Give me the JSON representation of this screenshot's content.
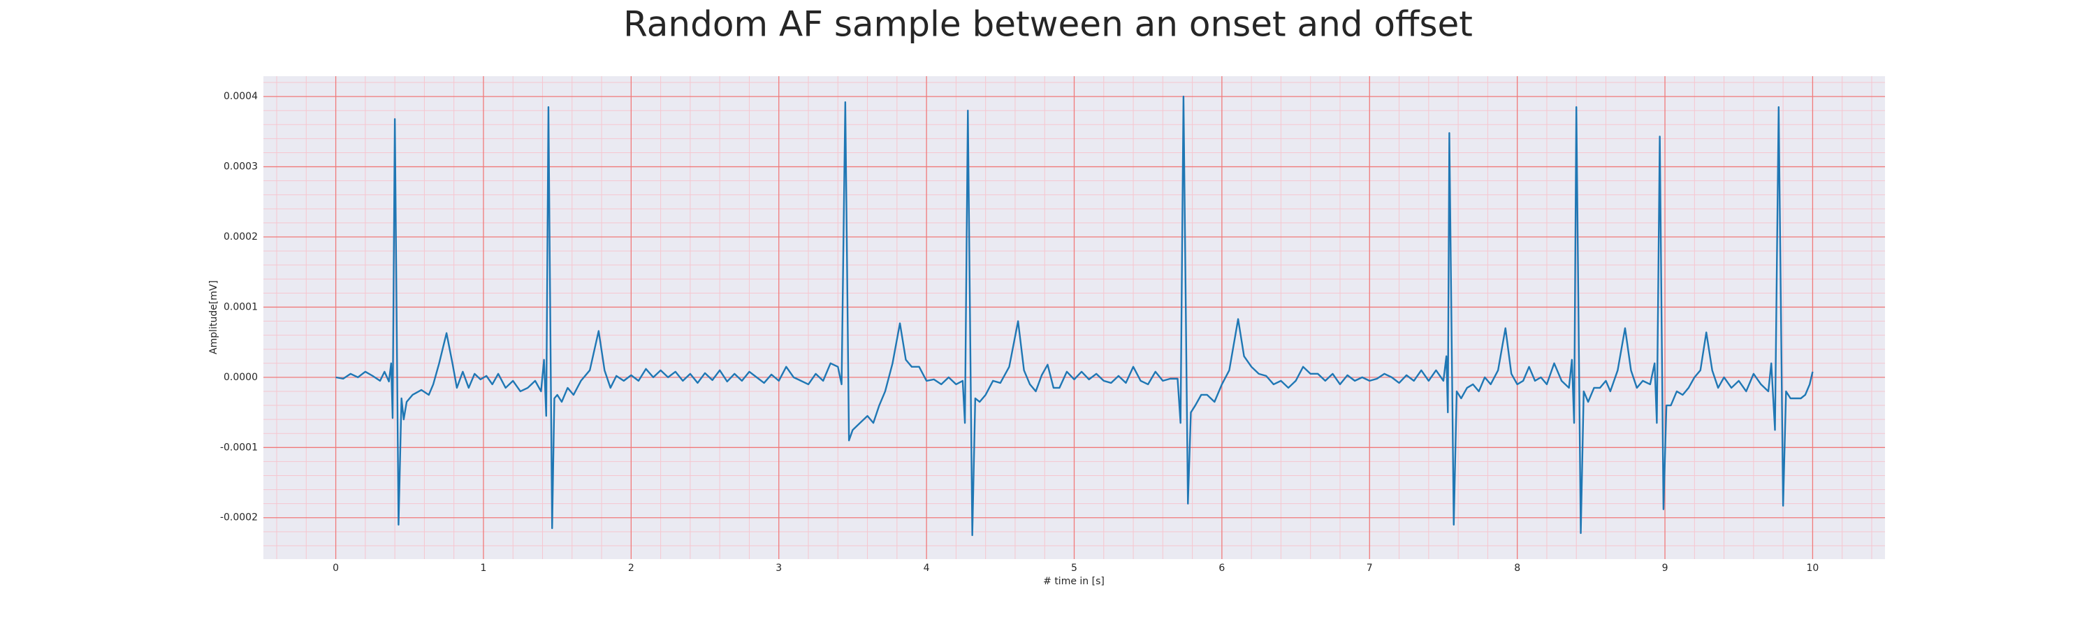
{
  "chart_data": {
    "type": "line",
    "title": "Random AF sample between an onset and offset",
    "xlabel": "# time in [s]",
    "ylabel": "Amplitude[mV]",
    "color": "#1f77b4",
    "grid": true,
    "minor_grid": true,
    "xlim": [
      -0.49,
      10.49
    ],
    "ylim": [
      -0.000259,
      0.000429
    ],
    "xticks": [
      0,
      1,
      2,
      3,
      4,
      5,
      6,
      7,
      8,
      9,
      10
    ],
    "yticks": [
      -0.0002,
      -0.0001,
      {
        "value": 0,
        "label": "0.0000"
      },
      0.0001,
      0.0002,
      0.0003,
      0.0004
    ],
    "x": [
      0,
      0.05,
      0.1,
      0.15,
      0.2,
      0.25,
      0.3,
      0.33,
      0.36,
      0.375,
      0.385,
      0.4,
      0.425,
      0.445,
      0.46,
      0.48,
      0.52,
      0.58,
      0.63,
      0.66,
      0.7,
      0.75,
      0.79,
      0.82,
      0.86,
      0.9,
      0.94,
      0.98,
      1.02,
      1.06,
      1.1,
      1.15,
      1.2,
      1.25,
      1.3,
      1.35,
      1.39,
      1.41,
      1.425,
      1.44,
      1.465,
      1.48,
      1.5,
      1.53,
      1.57,
      1.61,
      1.66,
      1.72,
      1.78,
      1.82,
      1.86,
      1.9,
      1.95,
      2,
      2.05,
      2.1,
      2.15,
      2.2,
      2.25,
      2.3,
      2.35,
      2.4,
      2.45,
      2.5,
      2.55,
      2.6,
      2.65,
      2.7,
      2.75,
      2.8,
      2.85,
      2.9,
      2.95,
      3,
      3.05,
      3.1,
      3.15,
      3.2,
      3.25,
      3.3,
      3.35,
      3.4,
      3.425,
      3.45,
      3.475,
      3.5,
      3.55,
      3.6,
      3.64,
      3.68,
      3.72,
      3.77,
      3.82,
      3.86,
      3.9,
      3.95,
      4,
      4.05,
      4.1,
      4.15,
      4.2,
      4.245,
      4.26,
      4.28,
      4.31,
      4.33,
      4.36,
      4.4,
      4.45,
      4.5,
      4.56,
      4.62,
      4.66,
      4.7,
      4.74,
      4.78,
      4.82,
      4.86,
      4.9,
      4.95,
      5,
      5.05,
      5.1,
      5.15,
      5.2,
      5.25,
      5.3,
      5.35,
      5.4,
      5.45,
      5.5,
      5.55,
      5.6,
      5.65,
      5.7,
      5.72,
      5.74,
      5.77,
      5.79,
      5.82,
      5.86,
      5.9,
      5.95,
      6,
      6.05,
      6.11,
      6.15,
      6.2,
      6.25,
      6.3,
      6.35,
      6.4,
      6.45,
      6.5,
      6.55,
      6.6,
      6.65,
      6.7,
      6.75,
      6.8,
      6.85,
      6.9,
      6.95,
      7,
      7.05,
      7.1,
      7.15,
      7.2,
      7.25,
      7.3,
      7.35,
      7.4,
      7.45,
      7.5,
      7.52,
      7.53,
      7.54,
      7.57,
      7.59,
      7.62,
      7.66,
      7.7,
      7.74,
      7.78,
      7.82,
      7.87,
      7.92,
      7.96,
      8,
      8.04,
      8.08,
      8.12,
      8.16,
      8.2,
      8.25,
      8.3,
      8.35,
      8.37,
      8.385,
      8.4,
      8.43,
      8.45,
      8.48,
      8.52,
      8.56,
      8.6,
      8.63,
      8.68,
      8.73,
      8.77,
      8.81,
      8.85,
      8.9,
      8.93,
      8.945,
      8.965,
      8.99,
      9.01,
      9.04,
      9.08,
      9.12,
      9.16,
      9.2,
      9.24,
      9.28,
      9.32,
      9.36,
      9.4,
      9.45,
      9.5,
      9.55,
      9.6,
      9.65,
      9.7,
      9.72,
      9.745,
      9.77,
      9.8,
      9.82,
      9.85,
      9.88,
      9.92,
      9.95,
      9.98,
      10
    ],
    "values": [
      0.0,
      -2e-06,
      5e-06,
      0.0,
      8e-06,
      2e-06,
      -5e-06,
      8e-06,
      -6e-06,
      2e-05,
      -5.8e-05,
      0.000368,
      -0.00021,
      -3e-05,
      -6e-05,
      -3.5e-05,
      -2.5e-05,
      -1.8e-05,
      -2.5e-05,
      -1e-05,
      2e-05,
      6.3e-05,
      2e-05,
      -1.5e-05,
      8e-06,
      -1.5e-05,
      5e-06,
      -3e-06,
      2e-06,
      -1e-05,
      5e-06,
      -1.5e-05,
      -5e-06,
      -2e-05,
      -1.5e-05,
      -5e-06,
      -2e-05,
      2.5e-05,
      -5.5e-05,
      0.000385,
      -0.000215,
      -3e-05,
      -2.5e-05,
      -3.5e-05,
      -1.5e-05,
      -2.5e-05,
      -5e-06,
      1e-05,
      6.6e-05,
      1e-05,
      -1.5e-05,
      2e-06,
      -5e-06,
      3e-06,
      -5e-06,
      1.2e-05,
      0.0,
      1e-05,
      0.0,
      8e-06,
      -5e-06,
      5e-06,
      -8e-06,
      6e-06,
      -4e-06,
      1e-05,
      -6e-06,
      5e-06,
      -5e-06,
      8e-06,
      0.0,
      -8e-06,
      4e-06,
      -5e-06,
      1.5e-05,
      0.0,
      -5e-06,
      -1e-05,
      5e-06,
      -5e-06,
      2e-05,
      1.5e-05,
      -1e-05,
      0.000392,
      -9e-05,
      -7.5e-05,
      -6.5e-05,
      -5.5e-05,
      -6.5e-05,
      -4e-05,
      -2e-05,
      2e-05,
      7.7e-05,
      2.5e-05,
      1.5e-05,
      1.5e-05,
      -5e-06,
      -3e-06,
      -1e-05,
      0.0,
      -1e-05,
      -5e-06,
      -6.5e-05,
      0.00038,
      -0.000225,
      -3e-05,
      -3.5e-05,
      -2.5e-05,
      -5e-06,
      -8e-06,
      1.5e-05,
      8e-05,
      1e-05,
      -1e-05,
      -2e-05,
      3e-06,
      1.8e-05,
      -1.5e-05,
      -1.5e-05,
      8e-06,
      -3e-06,
      8e-06,
      -3e-06,
      5e-06,
      -5e-06,
      -8e-06,
      2e-06,
      -8e-06,
      1.5e-05,
      -5e-06,
      -1e-05,
      8e-06,
      -5e-06,
      -2e-06,
      -2e-06,
      -6.5e-05,
      0.0004,
      -0.00018,
      -5e-05,
      -4e-05,
      -2.5e-05,
      -2.5e-05,
      -3.5e-05,
      -1e-05,
      1e-05,
      8.3e-05,
      3e-05,
      1.5e-05,
      5e-06,
      2e-06,
      -1e-05,
      -5e-06,
      -1.5e-05,
      -5e-06,
      1.5e-05,
      5e-06,
      5e-06,
      -5e-06,
      5e-06,
      -1e-05,
      3e-06,
      -5e-06,
      0.0,
      -5e-06,
      -2e-06,
      5e-06,
      0.0,
      -8e-06,
      3e-06,
      -5e-06,
      1e-05,
      -5e-06,
      1e-05,
      -5e-06,
      3e-05,
      -5e-05,
      0.000348,
      -0.00021,
      -2e-05,
      -3e-05,
      -1.5e-05,
      -1e-05,
      -2e-05,
      0.0,
      -1e-05,
      1e-05,
      7e-05,
      5e-06,
      -1e-05,
      -5e-06,
      1.5e-05,
      -5e-06,
      0.0,
      -1e-05,
      2e-05,
      -5e-06,
      -1.5e-05,
      2.5e-05,
      -6.5e-05,
      0.000385,
      -0.000222,
      -2e-05,
      -3.5e-05,
      -1.5e-05,
      -1.5e-05,
      -5e-06,
      -2e-05,
      1e-05,
      7e-05,
      1e-05,
      -1.5e-05,
      -5e-06,
      -1e-05,
      2e-05,
      -6.5e-05,
      0.000343,
      -0.000188,
      -4e-05,
      -4e-05,
      -2e-05,
      -2.5e-05,
      -1.5e-05,
      0.0,
      1e-05,
      6.4e-05,
      1e-05,
      -1.5e-05,
      0.0,
      -1.5e-05,
      -5e-06,
      -2e-05,
      5e-06,
      -1e-05,
      -2e-05,
      2e-05,
      -7.5e-05,
      0.000385,
      -0.000183,
      -2e-05,
      -3e-05,
      -3e-05,
      -3e-05,
      -2.5e-05,
      -1e-05,
      8e-06
    ]
  }
}
